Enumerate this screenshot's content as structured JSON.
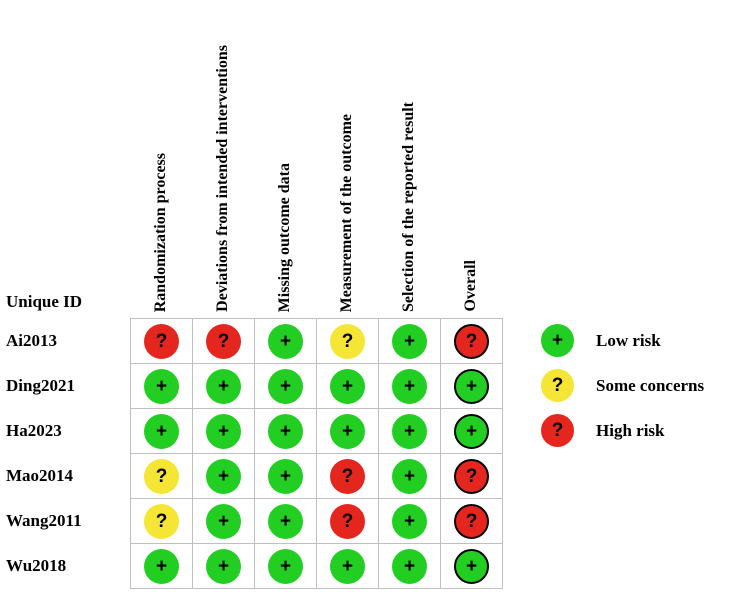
{
  "header": {
    "row_header_label": "Unique ID"
  },
  "chart_data": {
    "type": "heatmap",
    "description_label": "risk-of-bias-traffic-light-plot",
    "columns": [
      "Randomization process",
      "Deviations from intended interventions",
      "Missing outcome data",
      "Measurement of the outcome",
      "Selection of the reported result",
      "Overall"
    ],
    "rows": [
      {
        "id": "Ai2013",
        "judgements": [
          "high",
          "high",
          "low",
          "some",
          "low",
          "high"
        ]
      },
      {
        "id": "Ding2021",
        "judgements": [
          "low",
          "low",
          "low",
          "low",
          "low",
          "low"
        ]
      },
      {
        "id": "Ha2023",
        "judgements": [
          "low",
          "low",
          "low",
          "low",
          "low",
          "low"
        ]
      },
      {
        "id": "Mao2014",
        "judgements": [
          "some",
          "low",
          "low",
          "high",
          "low",
          "high"
        ]
      },
      {
        "id": "Wang2011",
        "judgements": [
          "some",
          "low",
          "low",
          "high",
          "low",
          "high"
        ]
      },
      {
        "id": "Wu2018",
        "judgements": [
          "low",
          "low",
          "low",
          "low",
          "low",
          "low"
        ]
      }
    ],
    "symbols": {
      "low": "+",
      "some": "?",
      "high": "?"
    },
    "colors": {
      "low": "#22CE22",
      "some": "#F5E636",
      "high": "#E5261F"
    },
    "legend": [
      {
        "level": "low",
        "symbol": "+",
        "label": "Low risk"
      },
      {
        "level": "some",
        "symbol": "?",
        "label": "Some concerns"
      },
      {
        "level": "high",
        "symbol": "?",
        "label": "High risk"
      }
    ],
    "grid": true,
    "legend_position": "right"
  }
}
